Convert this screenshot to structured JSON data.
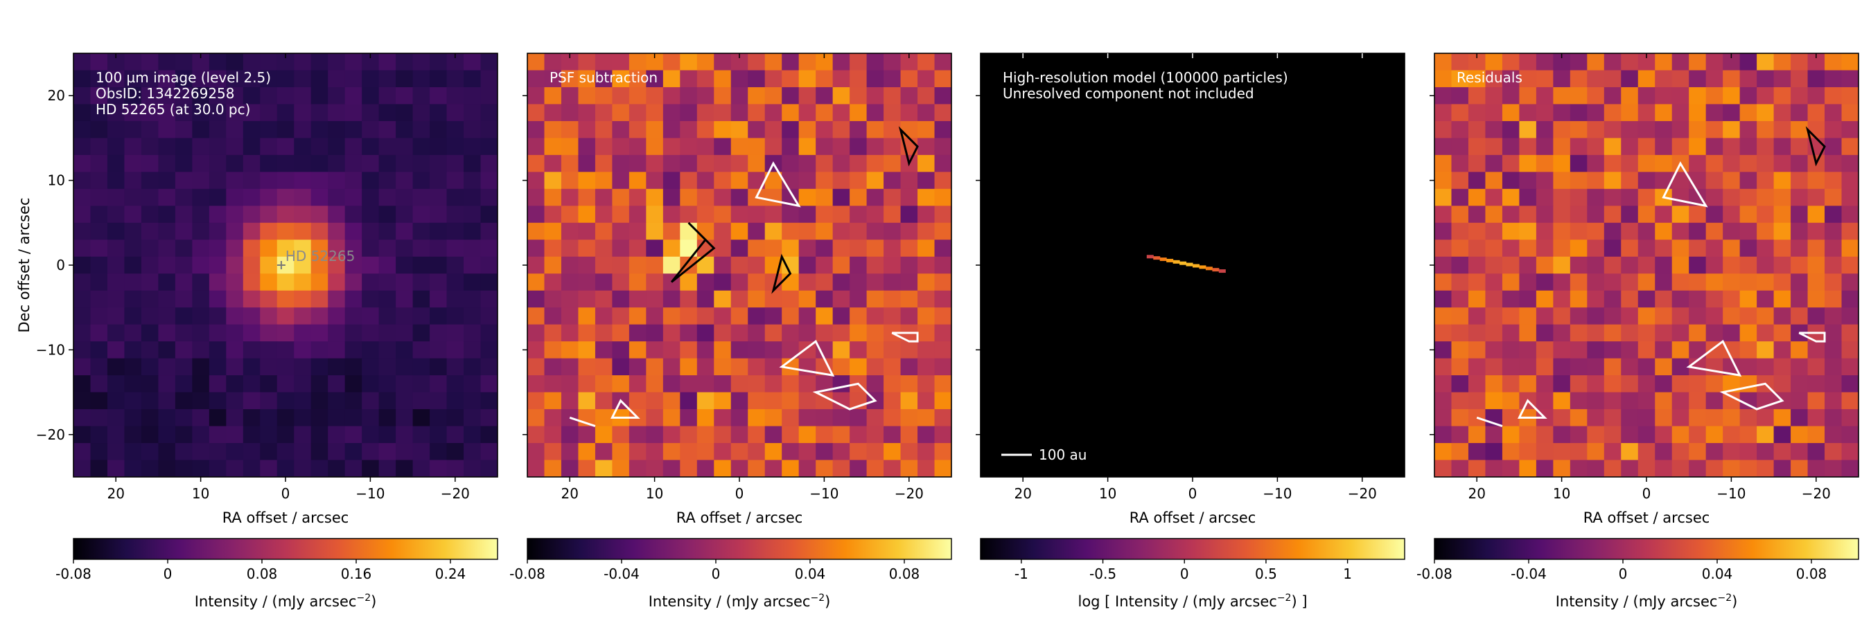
{
  "figure": {
    "colormap": "inferno",
    "shared_ylabel": "Dec offset / arcsec"
  },
  "chart_data": [
    {
      "type": "heatmap",
      "annotation_lines": [
        "100 µm image (level 2.5)",
        "ObsID: 1342269258",
        "HD 52265 (at 30.0 pc)"
      ],
      "star_label": "HD 52265",
      "xlabel": "RA offset / arcsec",
      "ylabel": "Dec offset / arcsec",
      "xlim": [
        25,
        -25
      ],
      "ylim": [
        -25,
        25
      ],
      "xticks": [
        20,
        10,
        0,
        -10,
        -20
      ],
      "yticks": [
        20,
        10,
        0,
        -10,
        -20
      ],
      "colorbar": {
        "label": "Intensity / (mJy arcsec",
        "label_sup": "−2",
        "label_tail": ")",
        "min": -0.08,
        "max": 0.28,
        "ticks": [
          -0.08,
          0,
          0.08,
          0.16,
          0.24
        ],
        "ticklabels": [
          "-0.08",
          "0",
          "0.08",
          "0.16",
          "0.24"
        ]
      }
    },
    {
      "type": "heatmap",
      "annotation_lines": [
        "PSF subtraction"
      ],
      "xlabel": "RA offset / arcsec",
      "xlim": [
        25,
        -25
      ],
      "ylim": [
        -25,
        25
      ],
      "xticks": [
        20,
        10,
        0,
        -10,
        -20
      ],
      "contours": "positive (black) and negative (white) significance levels",
      "colorbar": {
        "label": "Intensity / (mJy arcsec",
        "label_sup": "−2",
        "label_tail": ")",
        "min": -0.08,
        "max": 0.1,
        "ticks": [
          -0.08,
          -0.04,
          0,
          0.04,
          0.08
        ],
        "ticklabels": [
          "-0.08",
          "-0.04",
          "0",
          "0.04",
          "0.08"
        ]
      }
    },
    {
      "type": "heatmap",
      "annotation_lines": [
        "High-resolution model (100000 particles)",
        "Unresolved component not included"
      ],
      "scalebar_label": "100 au",
      "xlabel": "RA offset / arcsec",
      "xlim": [
        25,
        -25
      ],
      "ylim": [
        -25,
        25
      ],
      "xticks": [
        20,
        10,
        0,
        -10,
        -20
      ],
      "disk": {
        "x_from": 5,
        "x_to": -3.5,
        "y_from": 1.0,
        "y_to": -0.7
      },
      "colorbar": {
        "label": "log [ Intensity / (mJy arcsec",
        "label_sup": "−2",
        "label_tail": ") ]",
        "min": -1.25,
        "max": 1.35,
        "ticks": [
          -1,
          -0.5,
          0,
          0.5,
          1
        ],
        "ticklabels": [
          "-1",
          "-0.5",
          "0",
          "0.5",
          "1"
        ]
      }
    },
    {
      "type": "heatmap",
      "annotation_lines": [
        "Residuals"
      ],
      "xlabel": "RA offset / arcsec",
      "xlim": [
        25,
        -25
      ],
      "ylim": [
        -25,
        25
      ],
      "xticks": [
        20,
        10,
        0,
        -10,
        -20
      ],
      "contours": "positive (black) and negative (white) significance levels",
      "colorbar": {
        "label": "Intensity / (mJy arcsec",
        "label_sup": "−2",
        "label_tail": ")",
        "min": -0.08,
        "max": 0.1,
        "ticks": [
          -0.08,
          -0.04,
          0,
          0.04,
          0.08
        ],
        "ticklabels": [
          "-0.08",
          "-0.04",
          "0",
          "0.04",
          "0.08"
        ]
      }
    }
  ]
}
